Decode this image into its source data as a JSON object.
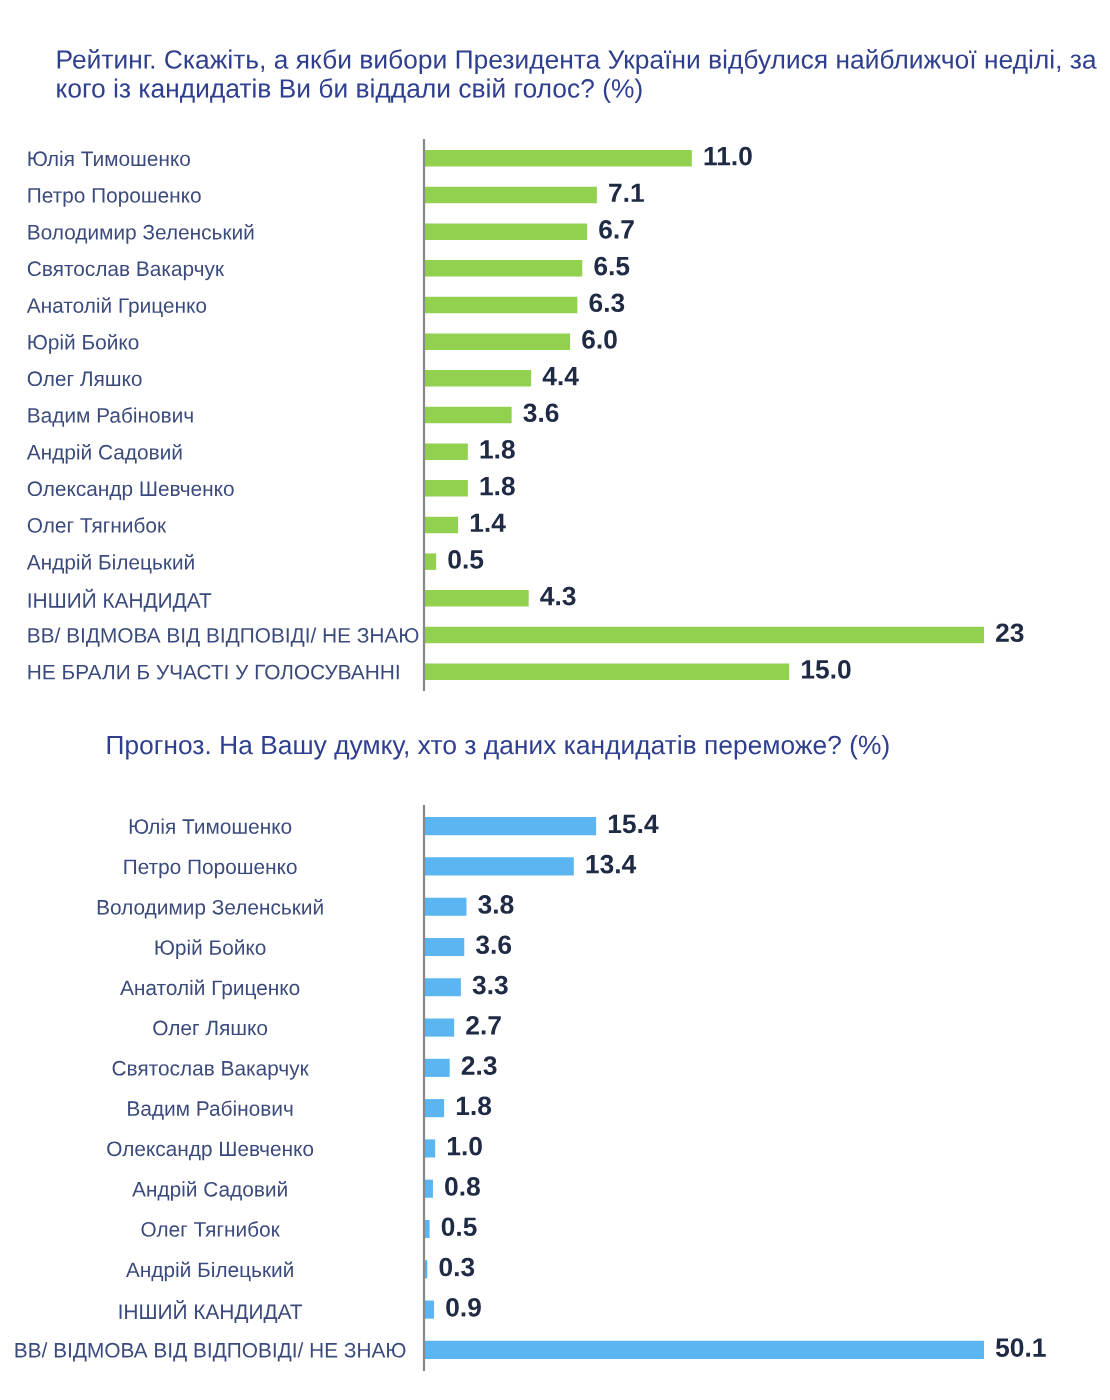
{
  "chart_data": [
    {
      "type": "bar",
      "orientation": "horizontal",
      "tick_labels": "y",
      "title": "Рейтинг. Скажіть, а якби вибори Президента України відбулися найближчої неділі, за кого із кандидатів Ви би віддали свій голос? (%)",
      "categories": [
        "Юлія Тимошенко",
        "Петро Порошенко",
        "Володимир Зеленський",
        "Святослав Вакарчук",
        "Анатолій Гриценко",
        "Юрій Бойко",
        "Олег Ляшко",
        "Вадим Рабінович",
        "Андрій Садовий",
        "Олександр Шевченко",
        "Олег Тягнибок",
        "Андрій Білецький",
        "ІНШИЙ КАНДИДАТ",
        "ВВ/ ВІДМОВА ВІД ВІДПОВІДІ/ НЕ ЗНАЮ",
        "НЕ БРАЛИ Б УЧАСТІ У ГОЛОСУВАННІ"
      ],
      "values": [
        11.0,
        7.1,
        6.7,
        6.5,
        6.3,
        6.0,
        4.4,
        3.6,
        1.8,
        1.8,
        1.4,
        0.5,
        4.3,
        23,
        15.0
      ],
      "value_labels": [
        "11.0",
        "7.1",
        "6.7",
        "6.5",
        "6.3",
        "6.0",
        "4.4",
        "3.6",
        "1.8",
        "1.8",
        "1.4",
        "0.5",
        "4.3",
        "23",
        "15.0"
      ],
      "color": "#92d050"
    },
    {
      "type": "bar",
      "orientation": "horizontal",
      "tick_labels": "y",
      "title": "Прогноз. На Вашу думку, хто з даних кандидатів переможе? (%)",
      "categories": [
        "Юлія Тимошенко",
        "Петро Порошенко",
        "Володимир Зеленський",
        "Юрій Бойко",
        "Анатолій Гриценко",
        "Олег Ляшко",
        "Святослав Вакарчук",
        "Вадим Рабінович",
        "Олександр Шевченко",
        "Андрій Садовий",
        "Олег Тягнибок",
        "Андрій Білецький",
        "ІНШИЙ КАНДИДАТ",
        "ВВ/ ВІДМОВА ВІД ВІДПОВІДІ/ НЕ ЗНАЮ"
      ],
      "values": [
        15.4,
        13.4,
        3.8,
        3.6,
        3.3,
        2.7,
        2.3,
        1.8,
        1.0,
        0.8,
        0.5,
        0.3,
        0.9,
        50.1
      ],
      "value_labels": [
        "15.4",
        "13.4",
        "3.8",
        "3.6",
        "3.3",
        "2.7",
        "2.3",
        "1.8",
        "1.0",
        "0.8",
        "0.5",
        "0.3",
        "0.9",
        "50.1"
      ],
      "color": "#5bb5f0"
    }
  ]
}
